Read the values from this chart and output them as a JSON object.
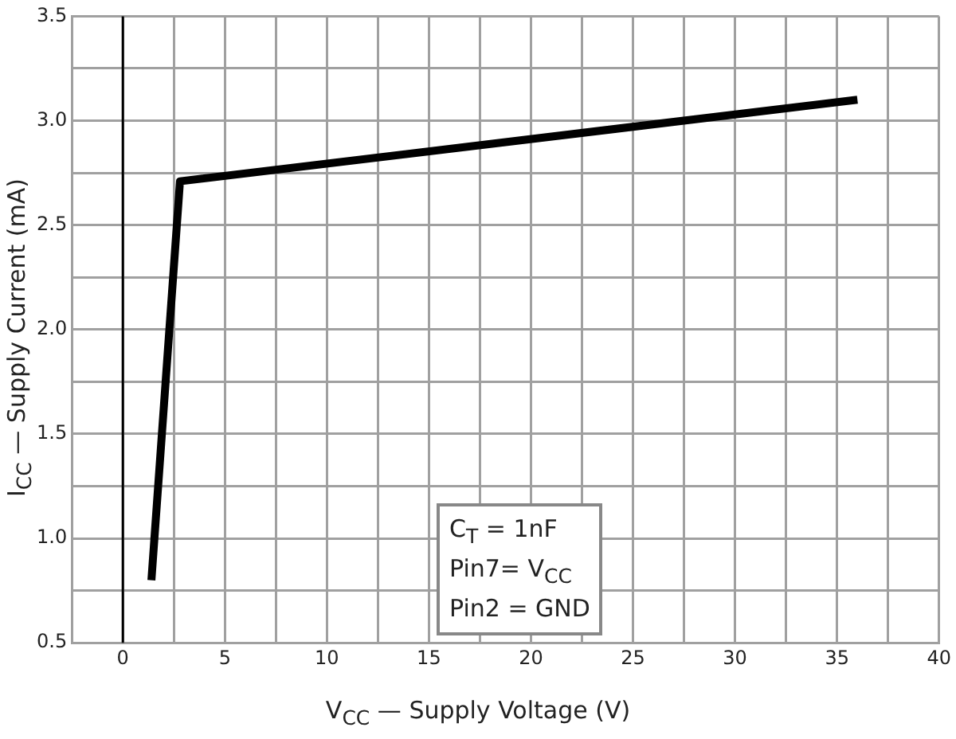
{
  "chart_data": {
    "type": "line",
    "xlabel": "V$_{CC}$ — Supply Voltage (V)",
    "ylabel": "I$_{CC}$ — Supply Current (mA)",
    "x": [
      1.4,
      2.8,
      36
    ],
    "series": [
      {
        "color": "#000000",
        "values": [
          0.8,
          2.71,
          3.1
        ]
      }
    ],
    "xlim": [
      -2.5,
      40
    ],
    "xticks": [
      {
        "value": -2.5,
        "label": null
      },
      0,
      {
        "value": 2.5,
        "label": null
      },
      5,
      {
        "value": 7.5,
        "label": null
      },
      10,
      {
        "value": 12.5,
        "label": null
      },
      15,
      {
        "value": 17.5,
        "label": null
      },
      20,
      {
        "value": 22.5,
        "label": null
      },
      25,
      {
        "value": 27.5,
        "label": null
      },
      30,
      {
        "value": 32.5,
        "label": null
      },
      35,
      {
        "value": 37.5,
        "label": null
      },
      40
    ],
    "ylim": [
      0.5,
      3.5
    ],
    "yticks": [
      0.5,
      {
        "value": 0.75,
        "label": null
      },
      {
        "value": 1,
        "label": "1.0"
      },
      {
        "value": 1.25,
        "label": null
      },
      1.5,
      {
        "value": 1.75,
        "label": null
      },
      {
        "value": 2,
        "label": "2.0"
      },
      {
        "value": 2.25,
        "label": null
      },
      2.5,
      {
        "value": 2.75,
        "label": null
      },
      {
        "value": 3,
        "label": "3.0"
      },
      {
        "value": 3.25,
        "label": null
      },
      3.5
    ],
    "ref_lines": [
      {
        "axis": "x",
        "value": 0,
        "color": "#000000"
      }
    ],
    "annotations": [
      "C$_{T}$ = 1nF",
      "Pin7= V$_{CC}$",
      "Pin2 = GND"
    ],
    "grid": true,
    "legend": false,
    "marker": "none",
    "line_style": "solid"
  }
}
